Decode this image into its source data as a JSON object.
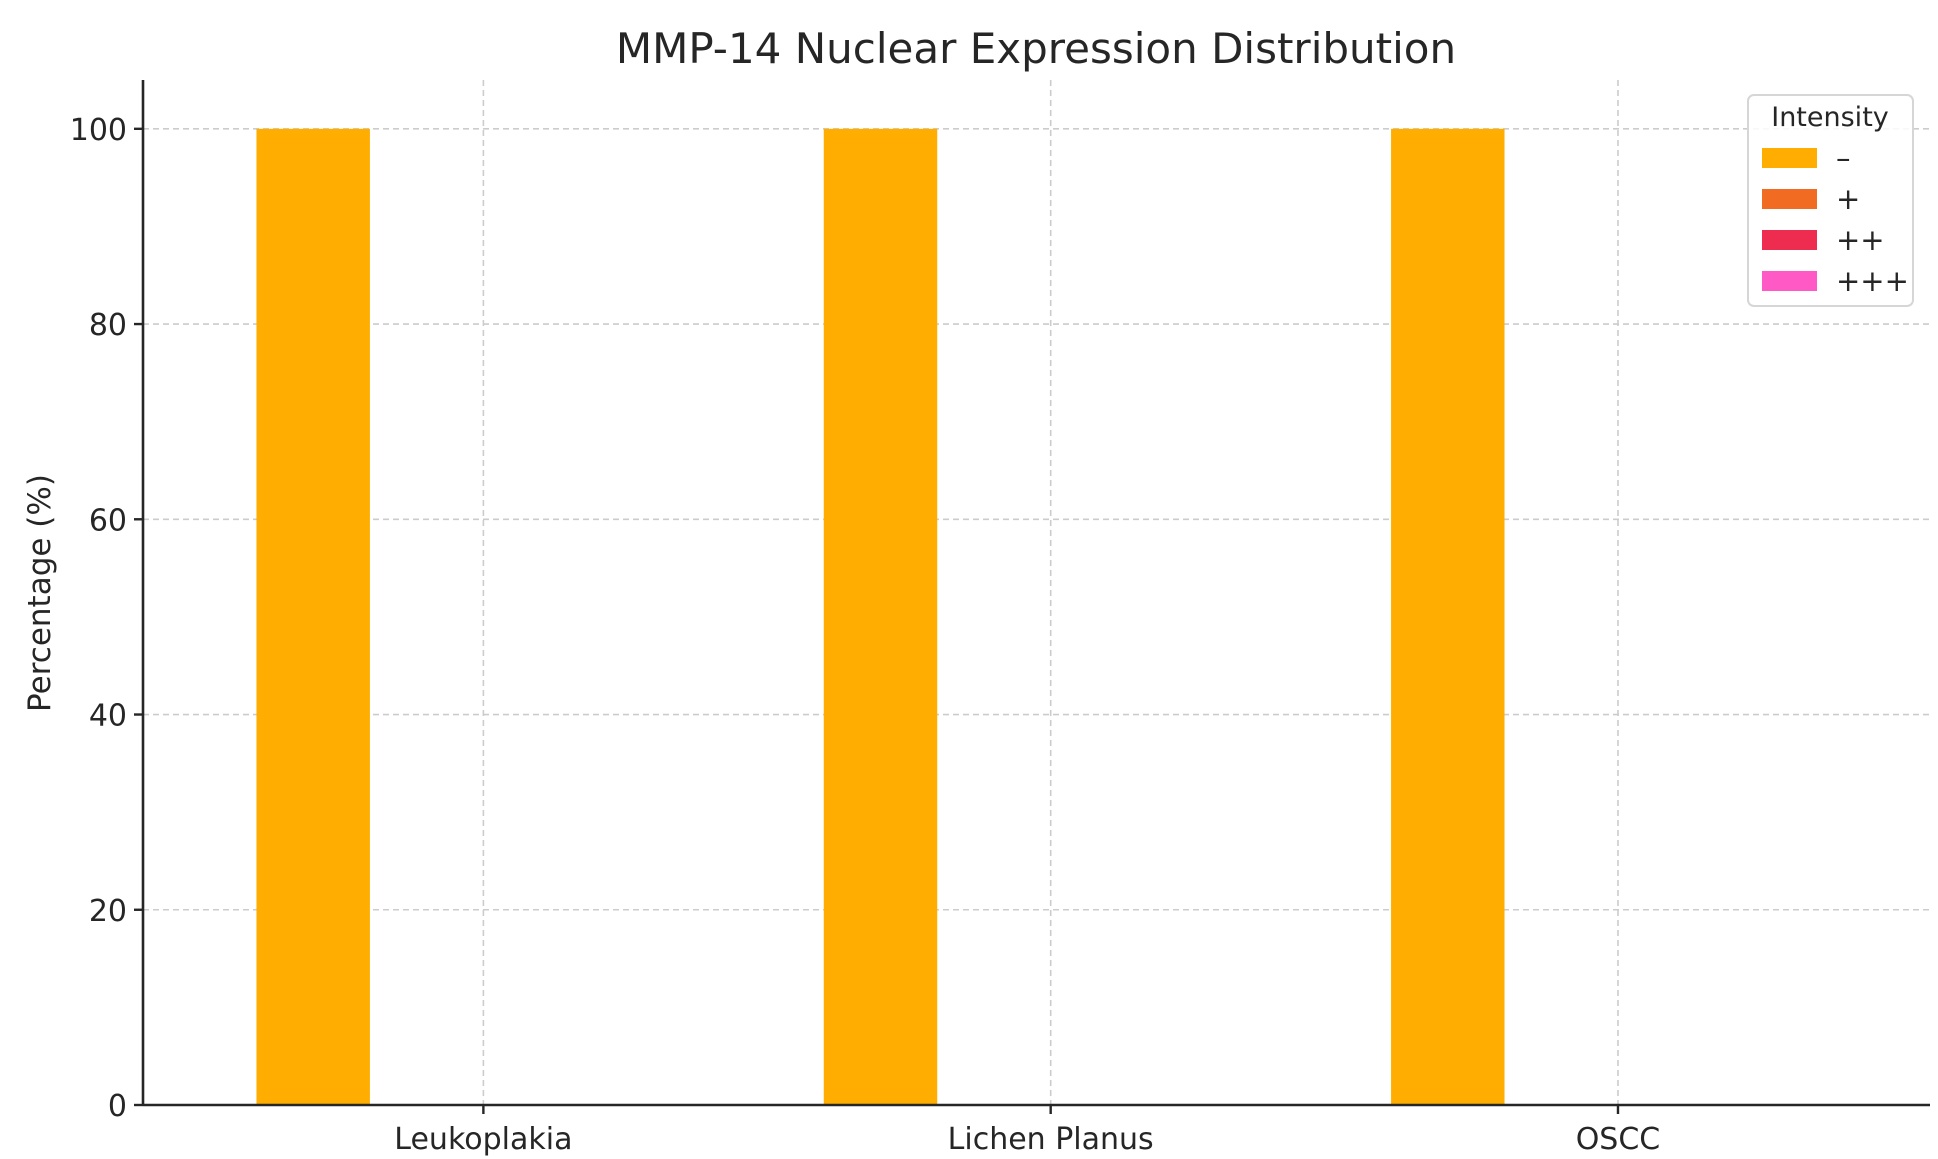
{
  "chart_data": {
    "type": "bar",
    "title": "MMP-14 Nuclear Expression Distribution",
    "xlabel": "",
    "ylabel": "Percentage (%)",
    "categories": [
      "Leukoplakia",
      "Lichen Planus",
      "OSCC"
    ],
    "series": [
      {
        "name": "–",
        "color": "#FFAD00",
        "values": [
          100,
          100,
          100
        ]
      },
      {
        "name": "+",
        "color": "#F26B22",
        "values": [
          0,
          0,
          0
        ]
      },
      {
        "name": "++",
        "color": "#EE2C50",
        "values": [
          0,
          0,
          0
        ]
      },
      {
        "name": "+++",
        "color": "#FF59C5",
        "values": [
          0,
          0,
          0
        ]
      }
    ],
    "ylim": [
      0,
      105
    ],
    "yticks": [
      0,
      20,
      40,
      60,
      80,
      100
    ],
    "grid": true,
    "legend": {
      "title": "Intensity",
      "position": "top-right"
    }
  }
}
